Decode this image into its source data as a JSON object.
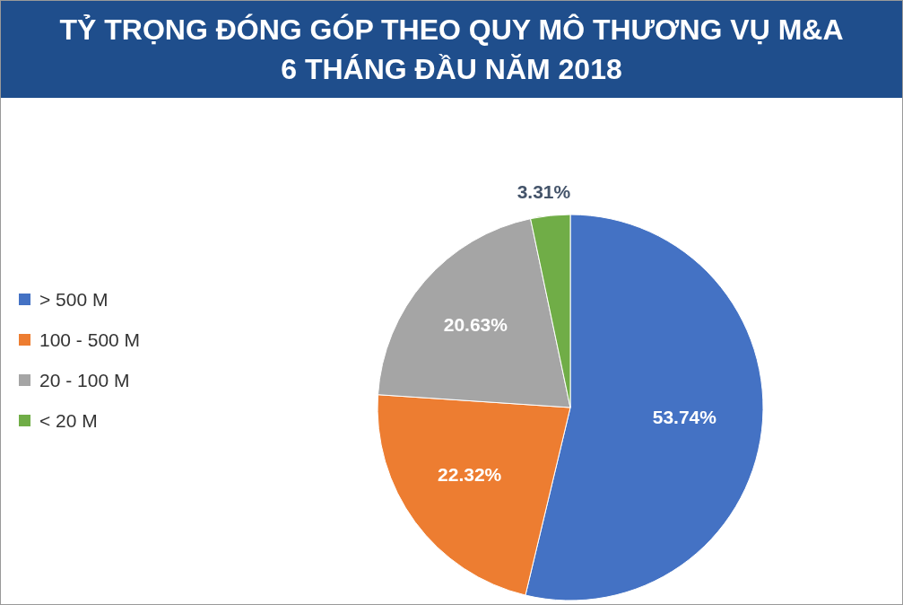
{
  "chart_data": {
    "type": "pie",
    "title": "TỶ TRỌNG ĐÓNG GÓP THEO QUY MÔ THƯƠNG VỤ M&A\n6 THÁNG ĐẦU NĂM 2018",
    "categories": [
      "> 500 M",
      "100 - 500 M",
      "20 - 100 M",
      "< 20 M"
    ],
    "values": [
      53.74,
      22.32,
      20.63,
      3.31
    ],
    "colors": [
      "#4472c4",
      "#ed7d31",
      "#a5a5a5",
      "#70ad47"
    ],
    "value_labels": [
      "53.74%",
      "22.32%",
      "20.63%",
      "3.31%"
    ],
    "legend": "left"
  }
}
